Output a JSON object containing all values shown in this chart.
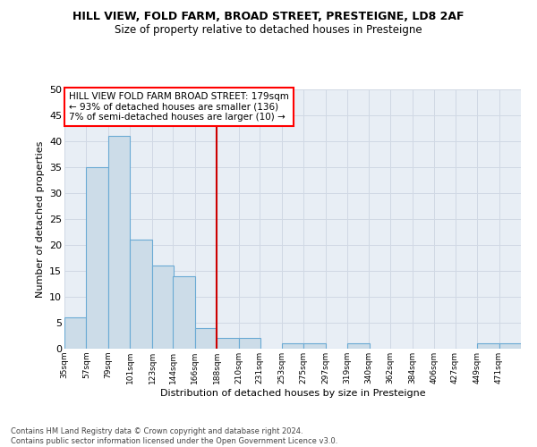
{
  "title": "HILL VIEW, FOLD FARM, BROAD STREET, PRESTEIGNE, LD8 2AF",
  "subtitle": "Size of property relative to detached houses in Presteigne",
  "xlabel": "Distribution of detached houses by size in Presteigne",
  "ylabel": "Number of detached properties",
  "bar_labels": [
    "35sqm",
    "57sqm",
    "79sqm",
    "101sqm",
    "123sqm",
    "144sqm",
    "166sqm",
    "188sqm",
    "210sqm",
    "231sqm",
    "253sqm",
    "275sqm",
    "297sqm",
    "319sqm",
    "340sqm",
    "362sqm",
    "384sqm",
    "406sqm",
    "427sqm",
    "449sqm",
    "471sqm"
  ],
  "bar_values": [
    6,
    35,
    41,
    21,
    16,
    14,
    4,
    2,
    2,
    0,
    1,
    1,
    0,
    1,
    0,
    0,
    0,
    0,
    0,
    1,
    1
  ],
  "bar_color": "#ccdce8",
  "bar_edge_color": "#6aaad4",
  "grid_color": "#d0d8e4",
  "background_color": "#e8eef5",
  "annotation_text": "HILL VIEW FOLD FARM BROAD STREET: 179sqm\n← 93% of detached houses are smaller (136)\n7% of semi-detached houses are larger (10) →",
  "vline_color": "#cc0000",
  "ylim": [
    0,
    50
  ],
  "yticks": [
    0,
    5,
    10,
    15,
    20,
    25,
    30,
    35,
    40,
    45,
    50
  ],
  "footnote": "Contains HM Land Registry data © Crown copyright and database right 2024.\nContains public sector information licensed under the Open Government Licence v3.0.",
  "bin_width": 22
}
